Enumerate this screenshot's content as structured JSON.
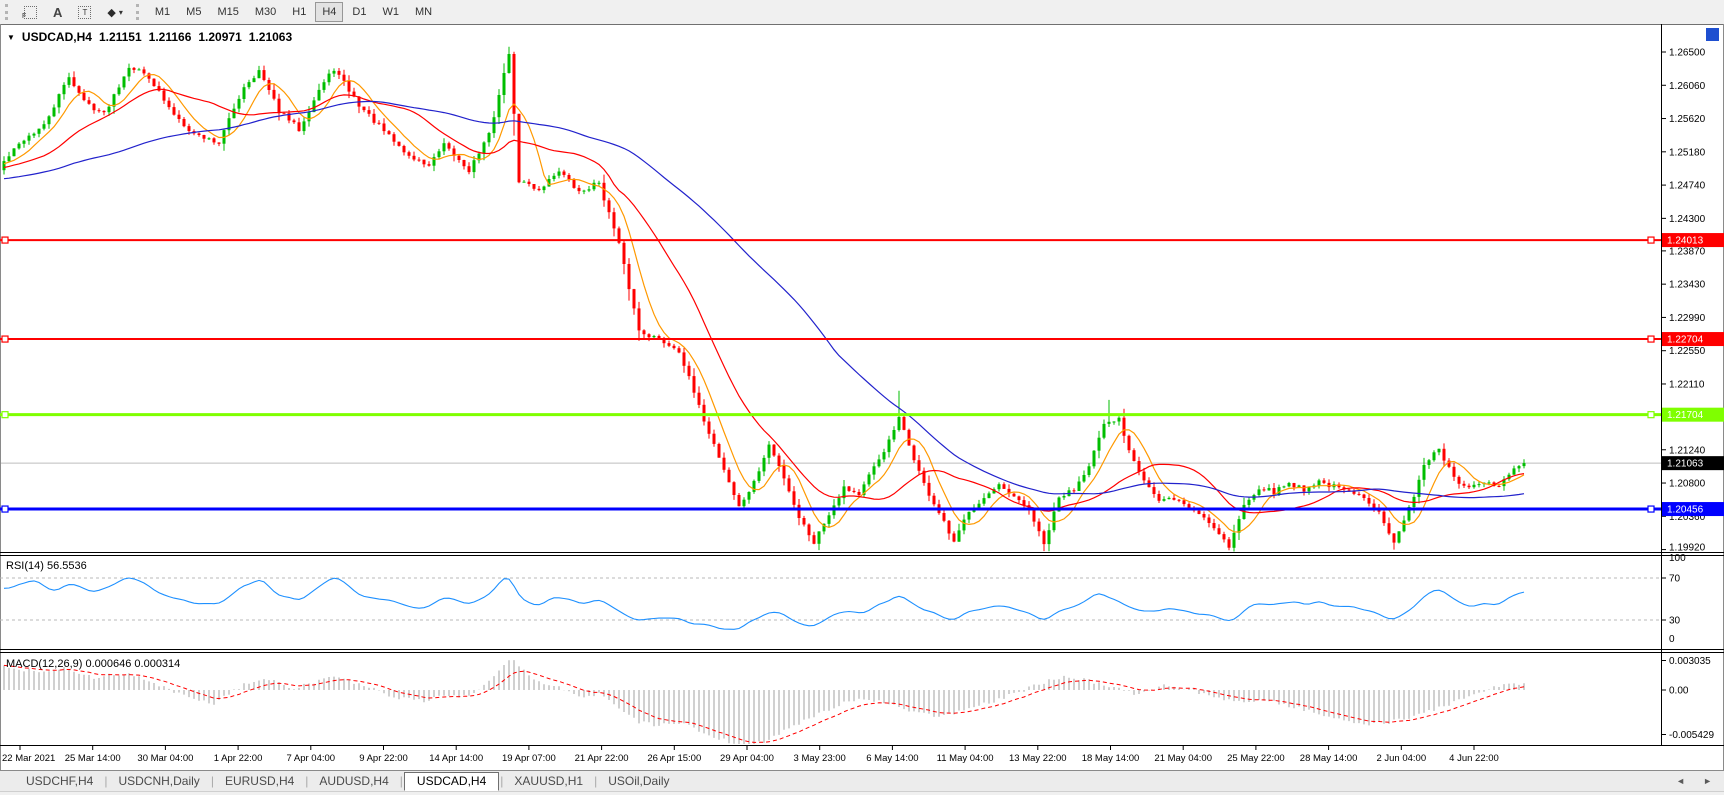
{
  "toolbar": {
    "tools": [
      {
        "name": "grid-f-icon",
        "kind": "gridf",
        "badge": "F"
      },
      {
        "name": "text-a-icon",
        "kind": "plain",
        "glyph": "A"
      },
      {
        "name": "text-label-icon",
        "kind": "box",
        "glyph": "T"
      },
      {
        "name": "arrows-icon",
        "kind": "caret",
        "glyph": "◆",
        "caret": "▾"
      }
    ],
    "timeframes": [
      {
        "label": "M1",
        "active": false
      },
      {
        "label": "M5",
        "active": false
      },
      {
        "label": "M15",
        "active": false
      },
      {
        "label": "M30",
        "active": false
      },
      {
        "label": "H1",
        "active": false
      },
      {
        "label": "H4",
        "active": true
      },
      {
        "label": "D1",
        "active": false
      },
      {
        "label": "W1",
        "active": false
      },
      {
        "label": "MN",
        "active": false
      }
    ]
  },
  "window": {
    "dropdown_arrow": "▼",
    "symbol": "USDCAD,H4",
    "open": "1.21151",
    "high": "1.21166",
    "low": "1.20971",
    "close": "1.21063"
  },
  "price_axis": {
    "ticks": [
      "1.26500",
      "1.26060",
      "1.25620",
      "1.25180",
      "1.24740",
      "1.24300",
      "1.23870",
      "1.23430",
      "1.22990",
      "1.22550",
      "1.22110",
      "1.21670",
      "1.21240",
      "1.20800",
      "1.20360",
      "1.19920"
    ]
  },
  "hlines": [
    {
      "label": "1.24013",
      "price": 1.24013,
      "color": "#FF0000",
      "thickness": 2
    },
    {
      "label": "1.22704",
      "price": 1.22704,
      "color": "#FF0000",
      "thickness": 2
    },
    {
      "label": "1.21704",
      "price": 1.21704,
      "color": "#7FFF00",
      "thickness": 3
    },
    {
      "label": "1.20456",
      "price": 1.20456,
      "color": "#0000FF",
      "thickness": 3
    }
  ],
  "current_price": {
    "label": "1.21063",
    "price": 1.21063,
    "line_color": "#BEBEBE",
    "label_bg": "#000000"
  },
  "chart_data": {
    "type": "candlestick",
    "symbol": "USDCAD",
    "timeframe": "H4",
    "title": "USDCAD,H4 1.21151 1.21166 1.20971 1.21063",
    "price_range_visible": [
      1.1992,
      1.2657
    ],
    "candles_count": 305,
    "up_color": "#00BE00",
    "down_color": "#FF0000",
    "close_anchors": [
      [
        0,
        1.2505
      ],
      [
        4,
        1.2535
      ],
      [
        8,
        1.2552
      ],
      [
        13,
        1.2618
      ],
      [
        16,
        1.2585
      ],
      [
        20,
        1.2568
      ],
      [
        25,
        1.2632
      ],
      [
        29,
        1.2618
      ],
      [
        33,
        1.2575
      ],
      [
        38,
        1.2542
      ],
      [
        43,
        1.253
      ],
      [
        48,
        1.2605
      ],
      [
        51,
        1.2625
      ],
      [
        55,
        1.2572
      ],
      [
        59,
        1.2548
      ],
      [
        63,
        1.26
      ],
      [
        66,
        1.2628
      ],
      [
        71,
        1.258
      ],
      [
        76,
        1.2545
      ],
      [
        81,
        1.2512
      ],
      [
        85,
        1.25
      ],
      [
        88,
        1.2526
      ],
      [
        93,
        1.2494
      ],
      [
        97,
        1.254
      ],
      [
        100,
        1.262
      ],
      [
        101,
        1.265
      ],
      [
        103,
        1.248
      ],
      [
        107,
        1.2468
      ],
      [
        111,
        1.2494
      ],
      [
        115,
        1.2464
      ],
      [
        119,
        1.2478
      ],
      [
        123,
        1.2395
      ],
      [
        127,
        1.2282
      ],
      [
        131,
        1.227
      ],
      [
        135,
        1.2256
      ],
      [
        139,
        1.218
      ],
      [
        143,
        1.2115
      ],
      [
        147,
        1.2048
      ],
      [
        150,
        1.208
      ],
      [
        153,
        1.213
      ],
      [
        156,
        1.2088
      ],
      [
        159,
        1.2035
      ],
      [
        162,
        1.2002
      ],
      [
        165,
        1.204
      ],
      [
        168,
        1.2075
      ],
      [
        171,
        1.2065
      ],
      [
        174,
        1.21
      ],
      [
        177,
        1.2135
      ],
      [
        179,
        1.2165
      ],
      [
        181,
        1.213
      ],
      [
        184,
        1.2078
      ],
      [
        187,
        1.204
      ],
      [
        190,
        1.2
      ],
      [
        193,
        1.2045
      ],
      [
        196,
        1.206
      ],
      [
        199,
        1.2075
      ],
      [
        202,
        1.206
      ],
      [
        205,
        1.2045
      ],
      [
        208,
        1.1998
      ],
      [
        211,
        1.206
      ],
      [
        214,
        1.2072
      ],
      [
        217,
        1.2105
      ],
      [
        220,
        1.2155
      ],
      [
        223,
        1.2165
      ],
      [
        225,
        1.2125
      ],
      [
        228,
        1.2085
      ],
      [
        231,
        1.2055
      ],
      [
        234,
        1.206
      ],
      [
        237,
        1.2048
      ],
      [
        240,
        1.2035
      ],
      [
        243,
        1.2015
      ],
      [
        245,
        1.1996
      ],
      [
        248,
        1.205
      ],
      [
        251,
        1.2075
      ],
      [
        254,
        1.2068
      ],
      [
        257,
        1.208
      ],
      [
        260,
        1.2072
      ],
      [
        263,
        1.2082
      ],
      [
        266,
        1.2075
      ],
      [
        269,
        1.2068
      ],
      [
        272,
        1.206
      ],
      [
        275,
        1.2045
      ],
      [
        278,
        1.2
      ],
      [
        281,
        1.2045
      ],
      [
        284,
        1.2105
      ],
      [
        287,
        1.2125
      ],
      [
        290,
        1.2085
      ],
      [
        293,
        1.2072
      ],
      [
        296,
        1.208
      ],
      [
        299,
        1.2076
      ],
      [
        302,
        1.2098
      ],
      [
        304,
        1.2106
      ]
    ],
    "spikes": [
      {
        "i": 101,
        "high": 1.2657
      },
      {
        "i": 162,
        "low": 1.1999
      },
      {
        "i": 179,
        "high": 1.2202
      },
      {
        "i": 208,
        "low": 1.199
      },
      {
        "i": 221,
        "high": 1.219
      },
      {
        "i": 245,
        "low": 1.1991
      },
      {
        "i": 278,
        "low": 1.1992
      }
    ],
    "moving_averages": [
      {
        "name": "ma-fast",
        "window": 7,
        "color": "#FF9900"
      },
      {
        "name": "ma-medium",
        "window": 21,
        "color": "#FF0000"
      },
      {
        "name": "ma-slow",
        "window": 65,
        "color": "#2222CC"
      }
    ]
  },
  "rsi": {
    "label": "RSI(14) 56.5536",
    "name": "RSI(14)",
    "value": "56.5536",
    "color": "#1E90FF",
    "level_labels": [
      "100",
      "70",
      "30",
      "0"
    ],
    "levels_dashed": [
      70,
      30
    ],
    "anchors": [
      [
        0,
        60
      ],
      [
        6,
        68
      ],
      [
        10,
        58
      ],
      [
        14,
        64
      ],
      [
        18,
        56
      ],
      [
        22,
        64
      ],
      [
        25,
        72
      ],
      [
        29,
        62
      ],
      [
        33,
        52
      ],
      [
        38,
        47
      ],
      [
        43,
        45
      ],
      [
        48,
        62
      ],
      [
        51,
        70
      ],
      [
        55,
        54
      ],
      [
        59,
        49
      ],
      [
        63,
        60
      ],
      [
        66,
        71
      ],
      [
        71,
        55
      ],
      [
        76,
        48
      ],
      [
        81,
        43
      ],
      [
        85,
        41
      ],
      [
        88,
        51
      ],
      [
        93,
        43
      ],
      [
        97,
        55
      ],
      [
        101,
        76
      ],
      [
        103,
        50
      ],
      [
        107,
        45
      ],
      [
        111,
        52
      ],
      [
        115,
        46
      ],
      [
        119,
        49
      ],
      [
        123,
        37
      ],
      [
        127,
        30
      ],
      [
        131,
        32
      ],
      [
        135,
        30
      ],
      [
        139,
        26
      ],
      [
        143,
        23
      ],
      [
        147,
        21
      ],
      [
        150,
        31
      ],
      [
        153,
        40
      ],
      [
        156,
        34
      ],
      [
        159,
        27
      ],
      [
        162,
        24
      ],
      [
        165,
        32
      ],
      [
        168,
        39
      ],
      [
        171,
        36
      ],
      [
        174,
        42
      ],
      [
        177,
        49
      ],
      [
        179,
        56
      ],
      [
        181,
        48
      ],
      [
        184,
        40
      ],
      [
        187,
        36
      ],
      [
        190,
        30
      ],
      [
        193,
        37
      ],
      [
        196,
        41
      ],
      [
        199,
        44
      ],
      [
        202,
        40
      ],
      [
        205,
        37
      ],
      [
        208,
        29
      ],
      [
        211,
        40
      ],
      [
        214,
        43
      ],
      [
        217,
        51
      ],
      [
        219,
        58
      ],
      [
        221,
        51
      ],
      [
        224,
        45
      ],
      [
        227,
        40
      ],
      [
        230,
        38
      ],
      [
        233,
        41
      ],
      [
        236,
        38
      ],
      [
        239,
        36
      ],
      [
        242,
        32
      ],
      [
        245,
        27
      ],
      [
        248,
        40
      ],
      [
        251,
        46
      ],
      [
        254,
        44
      ],
      [
        257,
        47
      ],
      [
        260,
        44
      ],
      [
        263,
        48
      ],
      [
        266,
        45
      ],
      [
        269,
        42
      ],
      [
        272,
        40
      ],
      [
        275,
        36
      ],
      [
        278,
        28
      ],
      [
        281,
        39
      ],
      [
        284,
        54
      ],
      [
        287,
        60
      ],
      [
        290,
        48
      ],
      [
        293,
        44
      ],
      [
        296,
        47
      ],
      [
        299,
        46
      ],
      [
        302,
        55
      ],
      [
        304,
        56.5
      ]
    ]
  },
  "macd": {
    "label": "MACD(12,26,9) 0.000646 0.000314",
    "name": "MACD(12,26,9)",
    "main_value": "0.000646",
    "signal_value": "0.000314",
    "scale_labels": [
      "0.003035",
      "0.00",
      "-0.005429"
    ],
    "histogram_color": "#A0A0A0",
    "signal_color": "#FF0000",
    "anchors": [
      [
        0,
        0.0022
      ],
      [
        6,
        0.0018
      ],
      [
        12,
        0.0021
      ],
      [
        18,
        0.0012
      ],
      [
        24,
        0.0016
      ],
      [
        30,
        0.0007
      ],
      [
        36,
        -0.0006
      ],
      [
        42,
        -0.0013
      ],
      [
        48,
        0.0005
      ],
      [
        52,
        0.0011
      ],
      [
        58,
        0.0002
      ],
      [
        63,
        0.0009
      ],
      [
        66,
        0.0013
      ],
      [
        72,
        0.0004
      ],
      [
        78,
        -0.0007
      ],
      [
        84,
        -0.0011
      ],
      [
        88,
        -0.0004
      ],
      [
        93,
        -0.0007
      ],
      [
        97,
        0.0009
      ],
      [
        101,
        0.003
      ],
      [
        103,
        0.0024
      ],
      [
        107,
        0.0007
      ],
      [
        111,
        0.0002
      ],
      [
        115,
        -0.0006
      ],
      [
        119,
        -0.0004
      ],
      [
        123,
        -0.0017
      ],
      [
        127,
        -0.0031
      ],
      [
        131,
        -0.0034
      ],
      [
        135,
        -0.0031
      ],
      [
        139,
        -0.0039
      ],
      [
        143,
        -0.0047
      ],
      [
        148,
        -0.0054
      ],
      [
        152,
        -0.005
      ],
      [
        157,
        -0.0037
      ],
      [
        162,
        -0.0025
      ],
      [
        167,
        -0.0014
      ],
      [
        172,
        -0.0008
      ],
      [
        177,
        -0.0013
      ],
      [
        182,
        -0.0021
      ],
      [
        187,
        -0.0025
      ],
      [
        192,
        -0.002
      ],
      [
        197,
        -0.0012
      ],
      [
        202,
        -0.0004
      ],
      [
        207,
        0.0006
      ],
      [
        212,
        0.0013
      ],
      [
        217,
        0.0009
      ],
      [
        222,
        0.0002
      ],
      [
        227,
        -0.0005
      ],
      [
        232,
        0.0004
      ],
      [
        237,
        0.0001
      ],
      [
        242,
        -0.0007
      ],
      [
        247,
        -0.0011
      ],
      [
        252,
        -0.0009
      ],
      [
        257,
        -0.0015
      ],
      [
        262,
        -0.0021
      ],
      [
        267,
        -0.0029
      ],
      [
        272,
        -0.0033
      ],
      [
        277,
        -0.0031
      ],
      [
        282,
        -0.0025
      ],
      [
        287,
        -0.0017
      ],
      [
        292,
        -0.0009
      ],
      [
        296,
        0.0
      ],
      [
        300,
        0.0005
      ],
      [
        304,
        0.000646
      ]
    ]
  },
  "time_axis": {
    "labels": [
      "22 Mar 2021",
      "25 Mar 14:00",
      "30 Mar 04:00",
      "1 Apr 22:00",
      "7 Apr 04:00",
      "9 Apr 22:00",
      "14 Apr 14:00",
      "19 Apr 07:00",
      "21 Apr 22:00",
      "26 Apr 15:00",
      "29 Apr 04:00",
      "3 May 23:00",
      "6 May 14:00",
      "11 May 04:00",
      "13 May 22:00",
      "18 May 14:00",
      "21 May 04:00",
      "25 May 22:00",
      "28 May 14:00",
      "2 Jun 04:00",
      "4 Jun 22:00"
    ]
  },
  "tabs": {
    "items": [
      {
        "label": "USDCHF,H4",
        "active": false
      },
      {
        "label": "USDCNH,Daily",
        "active": false
      },
      {
        "label": "EURUSD,H4",
        "active": false
      },
      {
        "label": "AUDUSD,H4",
        "active": false
      },
      {
        "label": "USDCAD,H4",
        "active": true
      },
      {
        "label": "XAUUSD,H1",
        "active": false
      },
      {
        "label": "USOil,Daily",
        "active": false
      }
    ],
    "left_arrow": "◄",
    "right_arrow": "►"
  }
}
